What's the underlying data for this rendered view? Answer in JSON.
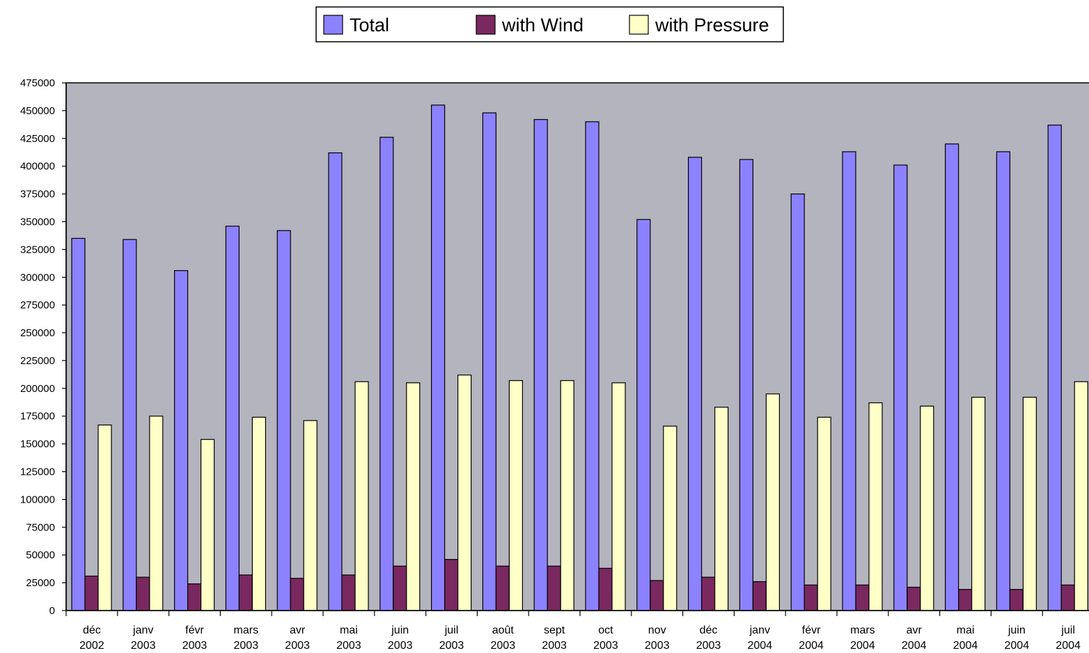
{
  "chart_data": {
    "type": "bar",
    "title": "",
    "xlabel": "",
    "ylabel": "",
    "ylim": [
      0,
      475000
    ],
    "ytick_step": 25000,
    "yticks": [
      "0",
      "25000",
      "50000",
      "75000",
      "100000",
      "125000",
      "150000",
      "175000",
      "200000",
      "225000",
      "250000",
      "275000",
      "300000",
      "325000",
      "350000",
      "375000",
      "400000",
      "425000",
      "450000",
      "475000"
    ],
    "grid": false,
    "legend_position": "top-center",
    "plot_background": "#b4b4be",
    "categories": [
      [
        "déc",
        "2002"
      ],
      [
        "janv",
        "2003"
      ],
      [
        "févr",
        "2003"
      ],
      [
        "mars",
        "2003"
      ],
      [
        "avr",
        "2003"
      ],
      [
        "mai",
        "2003"
      ],
      [
        "juin",
        "2003"
      ],
      [
        "juil",
        "2003"
      ],
      [
        "août",
        "2003"
      ],
      [
        "sept",
        "2003"
      ],
      [
        "oct",
        "2003"
      ],
      [
        "nov",
        "2003"
      ],
      [
        "déc",
        "2003"
      ],
      [
        "janv",
        "2004"
      ],
      [
        "févr",
        "2004"
      ],
      [
        "mars",
        "2004"
      ],
      [
        "avr",
        "2004"
      ],
      [
        "mai",
        "2004"
      ],
      [
        "juin",
        "2004"
      ],
      [
        "juil",
        "2004"
      ]
    ],
    "series": [
      {
        "name": "Total",
        "color": "#8c82ff",
        "values": [
          335000,
          334000,
          306000,
          346000,
          342000,
          412000,
          426000,
          455000,
          448000,
          442000,
          440000,
          352000,
          408000,
          406000,
          375000,
          413000,
          401000,
          420000,
          413000,
          437000
        ]
      },
      {
        "name": "with Wind",
        "color": "#7a2860",
        "values": [
          31000,
          30000,
          24000,
          32000,
          29000,
          32000,
          40000,
          46000,
          40000,
          40000,
          38000,
          27000,
          30000,
          26000,
          23000,
          23000,
          21000,
          19000,
          19000,
          23000
        ]
      },
      {
        "name": "with Pressure",
        "color": "#ffffc8",
        "values": [
          167000,
          175000,
          154000,
          174000,
          171000,
          206000,
          205000,
          212000,
          207000,
          207000,
          205000,
          166000,
          183000,
          195000,
          174000,
          187000,
          184000,
          192000,
          192000,
          206000
        ]
      }
    ]
  }
}
